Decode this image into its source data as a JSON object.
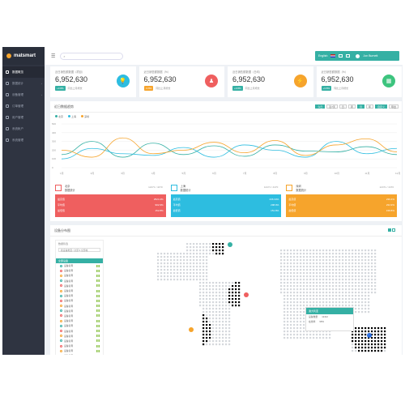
{
  "app": {
    "brand": "matsmart"
  },
  "sidebar": {
    "items": [
      {
        "label": "数据概览",
        "active": true
      },
      {
        "label": "数据统计",
        "caret": "›"
      },
      {
        "label": "设备管理",
        "caret": "›"
      },
      {
        "label": "订单管理"
      },
      {
        "label": "用户管理"
      },
      {
        "label": "系统帐户"
      },
      {
        "label": "系统管理"
      }
    ]
  },
  "topbar": {
    "search_placeholder": "",
    "language": "English",
    "user": "Jon Burnett"
  },
  "stats": [
    {
      "label": "近日销售额数据（项目）",
      "value": "6,952,630",
      "badge": "+3.8%",
      "badge_color": "#35b0a4",
      "sub": "同比上月增长",
      "icon_color": "#2dbde0",
      "icon": "💡"
    },
    {
      "label": "近日销售额数据（%）",
      "value": "6,952,630",
      "badge": "-3.8%",
      "badge_color": "#f6a42c",
      "sub": "同比上月增长",
      "icon_color": "#ef5f5f",
      "icon": "♟"
    },
    {
      "label": "近日销售额数据（日均）",
      "value": "6,952,630",
      "badge": "+3.8%",
      "badge_color": "#35b0a4",
      "sub": "同比上月增长",
      "icon_color": "#f6a42c",
      "icon": "⚡"
    },
    {
      "label": "近日销售额数据（%）",
      "value": "6,952,630",
      "badge": "+3.8%",
      "badge_color": "#35b0a4",
      "sub": "同比上月增长",
      "icon_color": "#3dc47e",
      "icon": "▦"
    }
  ],
  "chart_panel": {
    "title": "近日数据趋势",
    "controls": [
      "今日",
      "近7天",
      "日",
      "周",
      "月",
      "年",
      "自定义",
      "导出"
    ]
  },
  "chart_data": {
    "type": "line",
    "categories": [
      "1月",
      "2月",
      "3月",
      "4月",
      "5月",
      "6月",
      "7月",
      "8月",
      "9月",
      "10月",
      "11月",
      "12月"
    ],
    "ylim": [
      0,
      500
    ],
    "yticks": [
      "500",
      "400",
      "300",
      "200",
      "100",
      "0"
    ],
    "series": [
      {
        "name": "北京",
        "color": "#35b0a4",
        "values": [
          150,
          300,
          120,
          280,
          150,
          250,
          130,
          260,
          190,
          180,
          240,
          150
        ]
      },
      {
        "name": "上海",
        "color": "#2dbde0",
        "values": [
          100,
          220,
          160,
          140,
          230,
          120,
          260,
          200,
          120,
          300,
          160,
          220
        ]
      },
      {
        "name": "深圳",
        "color": "#f6a42c",
        "values": [
          200,
          120,
          340,
          160,
          200,
          290,
          170,
          310,
          140,
          260,
          330,
          180
        ]
      }
    ]
  },
  "cards": [
    {
      "title": "北京",
      "sub": "数据统计",
      "num": "12471 / 4470",
      "color": "#ef5f5f",
      "rows": [
        [
          "最高值",
          "2524.4%"
        ],
        [
          "平均值",
          "902.9%"
        ],
        [
          "最低值",
          "152.8%"
        ]
      ]
    },
    {
      "title": "上海",
      "sub": "数据统计",
      "num": "12471 / 4470",
      "color": "#2dbde0",
      "rows": [
        [
          "最高值",
          "236.34%"
        ],
        [
          "平均值",
          "298.9%"
        ],
        [
          "最低值",
          "151.8%"
        ]
      ]
    },
    {
      "title": "深圳",
      "sub": "数据统计",
      "num": "12471 / 4470",
      "color": "#f6a42c",
      "rows": [
        [
          "最高值",
          "239.4%"
        ],
        [
          "平均值",
          "234.9%"
        ],
        [
          "最低值",
          "158.8%"
        ]
      ]
    }
  ],
  "map_panel": {
    "title": "设备分布图",
    "list_header": "数据筛选",
    "list_select": "按设备类型 / 全部 ▾ 全部城",
    "group": "全部设备",
    "items": [
      "设备名称",
      "设备名称",
      "设备名称",
      "设备名称",
      "设备名称",
      "设备名称",
      "设备名称",
      "设备名称",
      "设备名称",
      "设备名称",
      "设备名称",
      "设备名称",
      "设备名称",
      "设备名称",
      "设备名称",
      "设备名称",
      "设备名称",
      "设备名称",
      "设备名称",
      "设备名称",
      "设备名称"
    ],
    "tooltip": {
      "title": "澳大利亚",
      "r1k": "设备数量",
      "r1v": "12412",
      "r2k": "在线率",
      "r2v": "98%"
    }
  }
}
